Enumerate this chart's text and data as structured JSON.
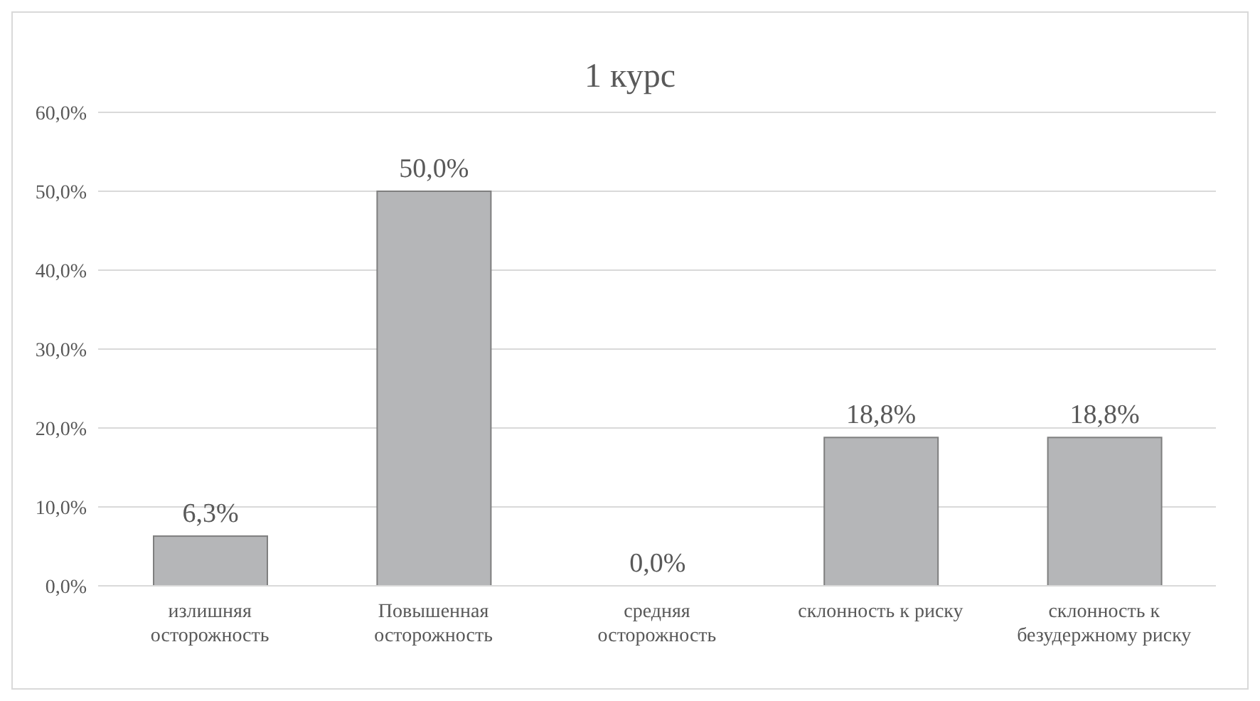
{
  "chart_data": {
    "type": "bar",
    "title": "1 курс",
    "categories": [
      "излишняя осторожность",
      "Повышенная осторожность",
      "средняя осторожность",
      "склонность к риску",
      "склонность к безудержному риску"
    ],
    "values": [
      6.3,
      50.0,
      0.0,
      18.8,
      18.8
    ],
    "value_labels": [
      "6,3%",
      "50,0%",
      "0,0%",
      "18,8%",
      "18,8%"
    ],
    "color": "#b5b6b8",
    "ylim": [
      0,
      60
    ],
    "yticks": [
      {
        "value": 0,
        "label": "0,0%"
      },
      {
        "value": 10,
        "label": "10,0%"
      },
      {
        "value": 20,
        "label": "20,0%"
      },
      {
        "value": 30,
        "label": "30,0%"
      },
      {
        "value": 40,
        "label": "40,0%"
      },
      {
        "value": 50,
        "label": "50,0%"
      },
      {
        "value": 60,
        "label": "60,0%"
      }
    ],
    "grid": "y",
    "legend": false
  }
}
